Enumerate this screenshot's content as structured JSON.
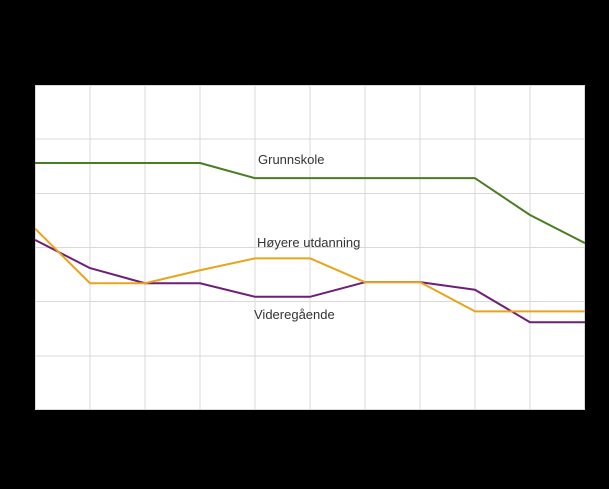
{
  "figure": {
    "background_color": "#000000"
  },
  "chart_data": {
    "type": "line",
    "title": "",
    "xlabel": "",
    "ylabel": "",
    "x": [
      0,
      1,
      2,
      3,
      4,
      5,
      6,
      7,
      8,
      9,
      10
    ],
    "xlim": [
      0,
      10
    ],
    "ylim": [
      0,
      60
    ],
    "x_gridline_step": 1,
    "y_gridline_step": 10,
    "grid": true,
    "gridline_color": "#d9d9d9",
    "plot_background": "#ffffff",
    "legend_position": "inline-annotations",
    "axis_tick_labels_visible": false,
    "series": [
      {
        "name": "Grunnskole",
        "color": "#4a7d1f",
        "values": [
          45.6,
          45.6,
          45.6,
          45.6,
          42.8,
          42.8,
          42.8,
          42.8,
          42.8,
          36.0,
          30.8
        ]
      },
      {
        "name": "Høyere utdanning",
        "color": "#e8a41b",
        "values": [
          33.5,
          23.4,
          23.4,
          25.8,
          28.0,
          28.0,
          23.6,
          23.6,
          18.2,
          18.2,
          18.2
        ]
      },
      {
        "name": "Videregående",
        "color": "#6e1e78",
        "values": [
          31.4,
          26.2,
          23.4,
          23.4,
          20.9,
          20.9,
          23.6,
          23.6,
          22.2,
          16.2,
          16.2
        ]
      }
    ]
  }
}
